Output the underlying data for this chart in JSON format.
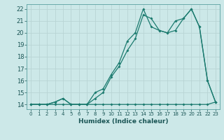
{
  "xlabel": "Humidex (Indice chaleur)",
  "bg_color": "#cce8e8",
  "grid_color": "#b8d4d4",
  "line_color": "#1a7a6e",
  "xlim": [
    -0.5,
    23.5
  ],
  "ylim": [
    13.6,
    22.4
  ],
  "xticks": [
    0,
    1,
    2,
    3,
    4,
    5,
    6,
    7,
    8,
    9,
    10,
    11,
    12,
    13,
    14,
    15,
    16,
    17,
    18,
    19,
    20,
    21,
    22,
    23
  ],
  "yticks": [
    14,
    15,
    16,
    17,
    18,
    19,
    20,
    21,
    22
  ],
  "series1_x": [
    0,
    1,
    2,
    3,
    4,
    5,
    6,
    7,
    8,
    9,
    10,
    11,
    12,
    13,
    14,
    15,
    16,
    17,
    18,
    19,
    20,
    21,
    22,
    23
  ],
  "series1_y": [
    14,
    14,
    14,
    14,
    14,
    14,
    14,
    14,
    14,
    14,
    14,
    14,
    14,
    14,
    14,
    14,
    14,
    14,
    14,
    14,
    14,
    14,
    14,
    14.2
  ],
  "series2_x": [
    0,
    1,
    2,
    3,
    4,
    5,
    6,
    7,
    8,
    9,
    10,
    11,
    12,
    13,
    14,
    15,
    16,
    17,
    18,
    19,
    20,
    21,
    22,
    23
  ],
  "series2_y": [
    14,
    14,
    14,
    14.2,
    14.5,
    14,
    14,
    14,
    15,
    15.3,
    16.5,
    17.5,
    19.3,
    20,
    22,
    20.5,
    20.2,
    20,
    20.2,
    21.2,
    22,
    20.5,
    16,
    14.2
  ],
  "series3_x": [
    0,
    1,
    2,
    3,
    4,
    5,
    6,
    7,
    8,
    9,
    10,
    11,
    12,
    13,
    14,
    15,
    16,
    17,
    18,
    19,
    20,
    21,
    22,
    23
  ],
  "series3_y": [
    14,
    14,
    14,
    14.2,
    14.5,
    14,
    14,
    14,
    14.5,
    15.0,
    16.3,
    17.2,
    18.5,
    19.5,
    21.5,
    21.2,
    20.2,
    20,
    21,
    21.2,
    22,
    20.5,
    16,
    14.2
  ]
}
